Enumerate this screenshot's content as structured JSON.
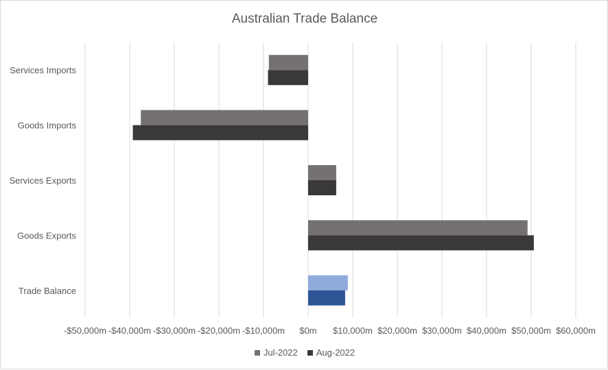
{
  "chart_data": {
    "type": "bar",
    "orientation": "horizontal",
    "title": "Australian Trade Balance",
    "categories": [
      "Services Imports",
      "Goods Imports",
      "Services Exports",
      "Goods Exports",
      "Trade Balance"
    ],
    "series": [
      {
        "name": "Jul-2022",
        "color": "#767171",
        "values": [
          -8800,
          -37500,
          6300,
          49200,
          8900
        ],
        "point_colors": {
          "Trade Balance": "#8faadc"
        }
      },
      {
        "name": "Aug-2022",
        "color": "#3a3838",
        "values": [
          -9000,
          -39300,
          6300,
          50600,
          8300
        ],
        "point_colors": {
          "Trade Balance": "#2f5597"
        }
      }
    ],
    "x_ticks": [
      "-$50,000m",
      "-$40,000m",
      "-$30,000m",
      "-$20,000m",
      "-$10,000m",
      "$0m",
      "$10,000m",
      "$20,000m",
      "$30,000m",
      "$40,000m",
      "$50,000m",
      "$60,000m"
    ],
    "xlim": [
      -50000,
      60000
    ],
    "tick_step": 10000,
    "grid": true,
    "legend_position": "bottom"
  }
}
